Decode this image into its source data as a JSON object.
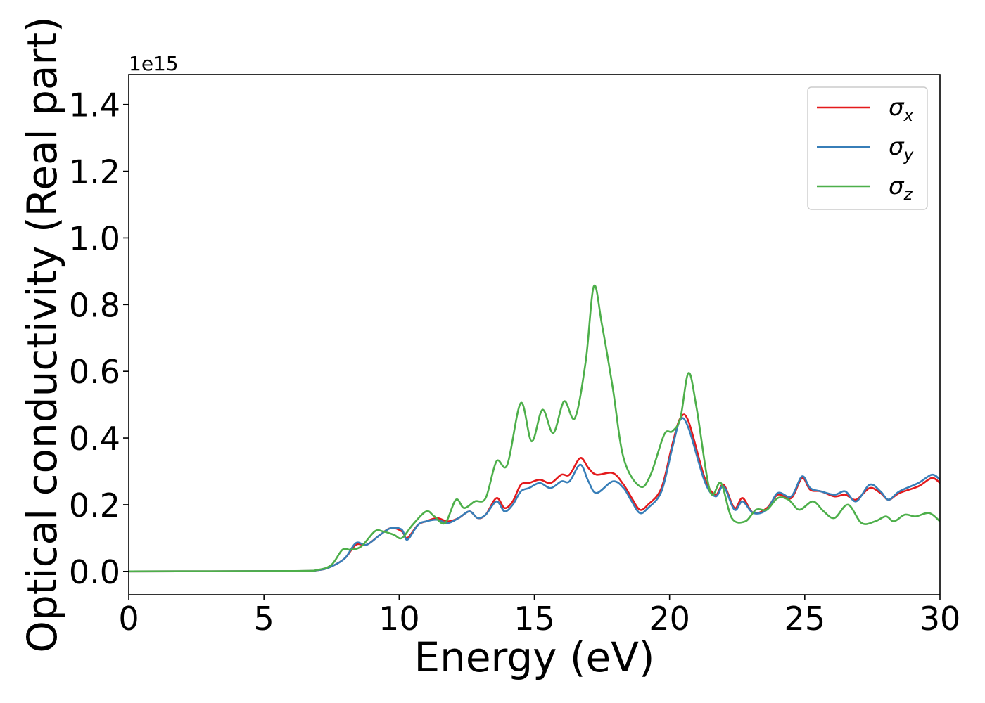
{
  "chart_data": {
    "type": "line",
    "xlabel": "Energy (eV)",
    "ylabel": "Optical conductivity (Real part)",
    "y_offset_label": "1e15",
    "xlim": [
      0,
      30
    ],
    "ylim": [
      -0.07,
      1.49
    ],
    "x_ticks": [
      0,
      5,
      10,
      15,
      20,
      25,
      30
    ],
    "y_ticks": [
      0.0,
      0.2,
      0.4,
      0.6,
      0.8,
      1.0,
      1.2,
      1.4
    ],
    "y_tick_labels": [
      "0.0",
      "0.2",
      "0.4",
      "0.6",
      "0.8",
      "1.0",
      "1.2",
      "1.4"
    ],
    "grid": false,
    "legend_position": "top-right",
    "series": [
      {
        "name": "σx",
        "symbol": "σ",
        "subscript": "x",
        "color": "#e41a1c",
        "points": [
          [
            0,
            0
          ],
          [
            6,
            0.001
          ],
          [
            7,
            0.004
          ],
          [
            7.5,
            0.015
          ],
          [
            8,
            0.04
          ],
          [
            8.4,
            0.08
          ],
          [
            8.8,
            0.08
          ],
          [
            9.3,
            0.11
          ],
          [
            9.7,
            0.13
          ],
          [
            10.1,
            0.12
          ],
          [
            10.3,
            0.1
          ],
          [
            10.7,
            0.14
          ],
          [
            11,
            0.15
          ],
          [
            11.4,
            0.16
          ],
          [
            11.8,
            0.15
          ],
          [
            12.2,
            0.16
          ],
          [
            12.6,
            0.18
          ],
          [
            12.9,
            0.16
          ],
          [
            13.2,
            0.17
          ],
          [
            13.6,
            0.22
          ],
          [
            13.9,
            0.19
          ],
          [
            14.2,
            0.21
          ],
          [
            14.5,
            0.26
          ],
          [
            14.8,
            0.265
          ],
          [
            15.2,
            0.275
          ],
          [
            15.6,
            0.265
          ],
          [
            16,
            0.29
          ],
          [
            16.3,
            0.29
          ],
          [
            16.7,
            0.34
          ],
          [
            17,
            0.31
          ],
          [
            17.3,
            0.29
          ],
          [
            17.9,
            0.295
          ],
          [
            18.3,
            0.26
          ],
          [
            18.6,
            0.22
          ],
          [
            18.9,
            0.185
          ],
          [
            19.2,
            0.2
          ],
          [
            19.7,
            0.25
          ],
          [
            20.1,
            0.38
          ],
          [
            20.4,
            0.46
          ],
          [
            20.7,
            0.45
          ],
          [
            21.3,
            0.28
          ],
          [
            21.7,
            0.23
          ],
          [
            22,
            0.26
          ],
          [
            22.4,
            0.19
          ],
          [
            22.7,
            0.22
          ],
          [
            23.1,
            0.175
          ],
          [
            23.6,
            0.19
          ],
          [
            24,
            0.23
          ],
          [
            24.5,
            0.22
          ],
          [
            24.9,
            0.28
          ],
          [
            25.2,
            0.245
          ],
          [
            25.6,
            0.24
          ],
          [
            26.1,
            0.225
          ],
          [
            26.5,
            0.23
          ],
          [
            26.9,
            0.215
          ],
          [
            27.4,
            0.25
          ],
          [
            27.8,
            0.235
          ],
          [
            28.1,
            0.215
          ],
          [
            28.5,
            0.235
          ],
          [
            29.2,
            0.255
          ],
          [
            29.7,
            0.28
          ],
          [
            30,
            0.265
          ]
        ]
      },
      {
        "name": "σy",
        "symbol": "σ",
        "subscript": "y",
        "color": "#377eb8",
        "points": [
          [
            0,
            0
          ],
          [
            6,
            0.001
          ],
          [
            7,
            0.004
          ],
          [
            7.5,
            0.015
          ],
          [
            8,
            0.04
          ],
          [
            8.4,
            0.085
          ],
          [
            8.8,
            0.08
          ],
          [
            9.3,
            0.11
          ],
          [
            9.7,
            0.13
          ],
          [
            10.1,
            0.125
          ],
          [
            10.3,
            0.095
          ],
          [
            10.7,
            0.14
          ],
          [
            11,
            0.15
          ],
          [
            11.4,
            0.155
          ],
          [
            11.8,
            0.145
          ],
          [
            12.2,
            0.16
          ],
          [
            12.6,
            0.18
          ],
          [
            12.9,
            0.16
          ],
          [
            13.2,
            0.17
          ],
          [
            13.6,
            0.21
          ],
          [
            13.9,
            0.18
          ],
          [
            14.2,
            0.2
          ],
          [
            14.5,
            0.24
          ],
          [
            14.8,
            0.25
          ],
          [
            15.2,
            0.265
          ],
          [
            15.6,
            0.25
          ],
          [
            16,
            0.27
          ],
          [
            16.3,
            0.27
          ],
          [
            16.7,
            0.32
          ],
          [
            17,
            0.27
          ],
          [
            17.3,
            0.235
          ],
          [
            17.9,
            0.27
          ],
          [
            18.3,
            0.25
          ],
          [
            18.6,
            0.21
          ],
          [
            18.9,
            0.175
          ],
          [
            19.2,
            0.19
          ],
          [
            19.7,
            0.24
          ],
          [
            20.1,
            0.37
          ],
          [
            20.4,
            0.455
          ],
          [
            20.7,
            0.43
          ],
          [
            21.3,
            0.27
          ],
          [
            21.7,
            0.225
          ],
          [
            22,
            0.255
          ],
          [
            22.4,
            0.185
          ],
          [
            22.7,
            0.21
          ],
          [
            23.1,
            0.175
          ],
          [
            23.6,
            0.185
          ],
          [
            24,
            0.235
          ],
          [
            24.5,
            0.225
          ],
          [
            24.9,
            0.285
          ],
          [
            25.2,
            0.25
          ],
          [
            25.6,
            0.24
          ],
          [
            26.1,
            0.23
          ],
          [
            26.5,
            0.24
          ],
          [
            26.9,
            0.21
          ],
          [
            27.4,
            0.26
          ],
          [
            27.8,
            0.24
          ],
          [
            28.1,
            0.215
          ],
          [
            28.5,
            0.24
          ],
          [
            29.2,
            0.265
          ],
          [
            29.7,
            0.29
          ],
          [
            30,
            0.275
          ]
        ]
      },
      {
        "name": "σz",
        "symbol": "σ",
        "subscript": "z",
        "color": "#4daf4a",
        "points": [
          [
            0,
            0
          ],
          [
            6,
            0.001
          ],
          [
            7,
            0.005
          ],
          [
            7.5,
            0.02
          ],
          [
            7.9,
            0.065
          ],
          [
            8.2,
            0.065
          ],
          [
            8.6,
            0.075
          ],
          [
            9.1,
            0.12
          ],
          [
            9.4,
            0.12
          ],
          [
            9.8,
            0.11
          ],
          [
            10.1,
            0.1
          ],
          [
            10.5,
            0.14
          ],
          [
            11,
            0.18
          ],
          [
            11.3,
            0.165
          ],
          [
            11.7,
            0.145
          ],
          [
            12.1,
            0.215
          ],
          [
            12.4,
            0.19
          ],
          [
            12.8,
            0.21
          ],
          [
            13.2,
            0.22
          ],
          [
            13.6,
            0.33
          ],
          [
            14,
            0.32
          ],
          [
            14.5,
            0.505
          ],
          [
            14.9,
            0.39
          ],
          [
            15.3,
            0.485
          ],
          [
            15.7,
            0.415
          ],
          [
            16.1,
            0.51
          ],
          [
            16.5,
            0.46
          ],
          [
            16.9,
            0.63
          ],
          [
            17.2,
            0.855
          ],
          [
            17.5,
            0.74
          ],
          [
            17.9,
            0.55
          ],
          [
            18.3,
            0.34
          ],
          [
            18.9,
            0.255
          ],
          [
            19.3,
            0.29
          ],
          [
            19.8,
            0.41
          ],
          [
            20.1,
            0.42
          ],
          [
            20.4,
            0.46
          ],
          [
            20.7,
            0.595
          ],
          [
            21,
            0.49
          ],
          [
            21.5,
            0.24
          ],
          [
            21.9,
            0.265
          ],
          [
            22.3,
            0.16
          ],
          [
            22.8,
            0.15
          ],
          [
            23.2,
            0.185
          ],
          [
            23.6,
            0.185
          ],
          [
            24,
            0.22
          ],
          [
            24.4,
            0.215
          ],
          [
            24.8,
            0.185
          ],
          [
            25.3,
            0.21
          ],
          [
            25.7,
            0.18
          ],
          [
            26.1,
            0.16
          ],
          [
            26.6,
            0.2
          ],
          [
            27.1,
            0.145
          ],
          [
            27.6,
            0.15
          ],
          [
            28,
            0.165
          ],
          [
            28.3,
            0.15
          ],
          [
            28.7,
            0.17
          ],
          [
            29.1,
            0.165
          ],
          [
            29.6,
            0.175
          ],
          [
            30,
            0.15
          ]
        ]
      }
    ]
  }
}
